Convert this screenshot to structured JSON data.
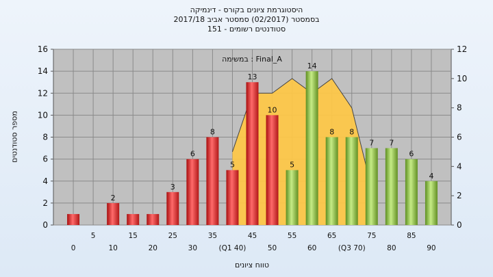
{
  "titles": {
    "line1": "היסטוגרמת ציונים בקורס - דינמיקה",
    "line2": "בסמסטר  (02/2017)  סמסטר אביב 2017/18",
    "line3": "סטודנטים רשומים - 151"
  },
  "colors": {
    "plot_bg": "#c0c0c0",
    "bar_below": "#e53030",
    "bar_above": "#8cc63f",
    "area": "#ffc845"
  },
  "chart_data": {
    "type": "bar",
    "title": "היסטוגרמת ציונים בקורס - דינמיקה",
    "subtitle": "בסמסטר  (02/2017)  סמסטר אביב 2017/18 / סטודנטים רשומים - 151",
    "annotation": "Final_A : במשימה",
    "xlabel": "טווח ציונים",
    "ylabel": "מספר סטודנטים",
    "categories": [
      "0",
      "5",
      "10",
      "15",
      "20",
      "25",
      "30",
      "35",
      "(Q1 40)",
      "45",
      "50",
      "55",
      "60",
      "65",
      "(Q3 70)",
      "75",
      "80",
      "85",
      "90"
    ],
    "values": [
      1,
      0,
      2,
      1,
      1,
      3,
      6,
      8,
      5,
      13,
      10,
      5,
      14,
      8,
      8,
      7,
      7,
      6,
      4
    ],
    "data_labels": [
      "",
      "",
      "2",
      "",
      "",
      "3",
      "6",
      "8",
      "5",
      "13",
      "10",
      "5",
      "14",
      "8",
      "8",
      "7",
      "7",
      "6",
      "4"
    ],
    "bar_colors": [
      "#e53030",
      "#e53030",
      "#e53030",
      "#e53030",
      "#e53030",
      "#e53030",
      "#e53030",
      "#e53030",
      "#e53030",
      "#e53030",
      "#e53030",
      "#8cc63f",
      "#8cc63f",
      "#8cc63f",
      "#8cc63f",
      "#8cc63f",
      "#8cc63f",
      "#8cc63f",
      "#8cc63f"
    ],
    "ylim": [
      0,
      16
    ],
    "yticks": [
      0,
      2,
      4,
      6,
      8,
      10,
      12,
      14,
      16
    ],
    "y2lim": [
      0,
      12
    ],
    "y2ticks": [
      0,
      2,
      4,
      6,
      8,
      10,
      12
    ],
    "area_series": {
      "x_index": [
        8,
        9,
        10,
        11,
        12,
        13,
        14,
        15
      ],
      "values": [
        5,
        9,
        9,
        10,
        9,
        10,
        8,
        2.5
      ]
    },
    "grid": true
  }
}
